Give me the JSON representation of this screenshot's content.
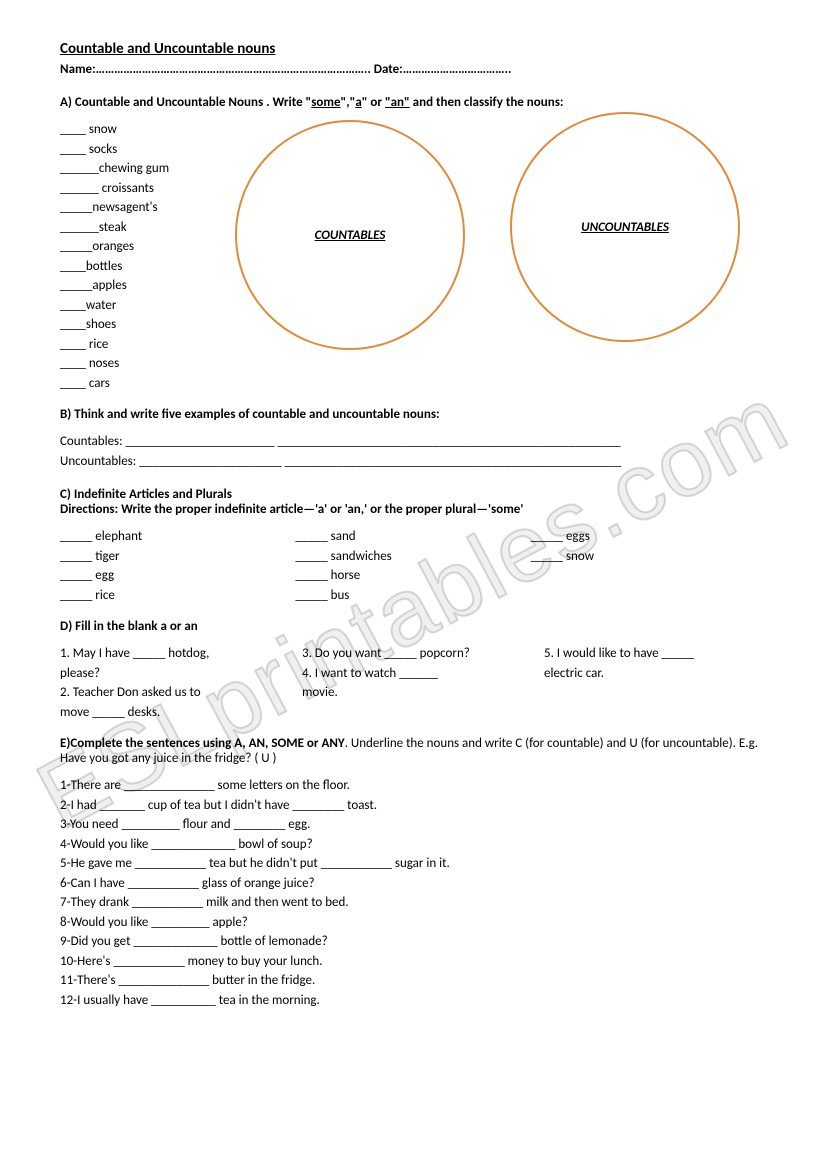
{
  "title": "Countable and Uncountable nouns",
  "name_date": "Name:…………………………………………………………………………….. Date:……………………………..",
  "sectionA": {
    "header_prefix": "A) Countable and Uncountable Nouns . Write \"",
    "header_some": "some",
    "header_mid1": "\",\"",
    "header_a": "a",
    "header_mid2": "\" or ",
    "header_an": "\"an\"",
    "header_suffix": " and then classify the nouns:",
    "words": [
      "____ snow",
      "____ socks",
      "______chewing gum",
      "______ croissants",
      "_____newsagent's",
      "______steak",
      "_____oranges",
      "____bottles",
      "_____apples",
      "____water",
      "____shoes",
      "____ rice",
      "____ noses",
      "____ cars"
    ],
    "circle_left_label": "COUNTABLES",
    "circle_right_label": "UNCOUNTABLES",
    "circle_color": "#e08b3a"
  },
  "sectionB": {
    "header": "B) Think and write  five examples of countable and uncountable nouns:",
    "line1": "Countables: _______________________  _____________________________________________________",
    "line2": "Uncountables: ______________________  ____________________________________________________"
  },
  "sectionC": {
    "header1": "C) Indefinite Articles and Plurals",
    "header2": "Directions: Write the proper indefinite article—'a' or 'an,' or the proper plural—'some'",
    "col1": [
      "_____ elephant",
      "_____ tiger",
      "_____ egg",
      "_____ rice"
    ],
    "col2": [
      "_____ sand",
      "_____ sandwiches",
      "_____ horse",
      "_____ bus"
    ],
    "col3": [
      "_____ eggs",
      "_____ snow"
    ]
  },
  "sectionD": {
    "header": "D) Fill in the blank   a or an",
    "col1": [
      "1.  May I have _____ hotdog,",
      "please?",
      "2. Teacher Don asked us to",
      "move _____ desks."
    ],
    "col2": [
      "3. Do you want _____ popcorn?",
      "4. I want to watch ______",
      "movie."
    ],
    "col3": [
      "5. I would like to have _____",
      "electric car."
    ]
  },
  "sectionE": {
    "header_prefix": "E)Complete the sentences using ",
    "header_bold": "A, AN, SOME or ANY",
    "header_suffix": ".  Underline the nouns and write C (for countable) and U (for uncountable). E.g. Have you got any juice in the fridge? ( U )",
    "items": [
      "1-There are ______________ some letters on the floor.",
      "2-I had _______ cup of tea but I didn't have ________ toast.",
      "3-You need _________ flour and ________ egg.",
      "4-Would you like _____________ bowl of soup?",
      "5-He gave me ___________ tea but he didn't put ___________ sugar in it.",
      "6-Can I have ___________ glass of orange juice?",
      "7-They drank ___________ milk and then went to bed.",
      "8-Would you like _________ apple?",
      "9-Did you get _____________ bottle of lemonade?",
      "10-Here's ___________ money to buy your lunch.",
      "11-There's ______________ butter in the fridge.",
      "12-I usually have __________ tea in the morning."
    ]
  },
  "watermark": "ESLprintables.com"
}
